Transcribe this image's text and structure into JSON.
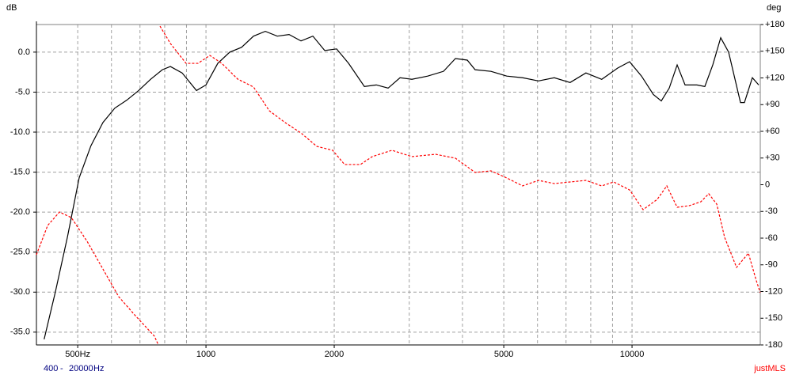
{
  "chart_data": {
    "type": "line",
    "y_label": "dB",
    "y2_label": "deg",
    "x_unit": "Hz",
    "x_range_separator": "-",
    "software": "justMLS",
    "log_x": true,
    "grid": true,
    "xlim": [
      400,
      20000
    ],
    "xticks": [
      {
        "value": 500,
        "label": "500Hz"
      },
      1000,
      2000,
      5000,
      10000
    ],
    "xgrid": [
      500,
      600,
      700,
      800,
      900,
      1000,
      2000,
      3000,
      4000,
      5000,
      6000,
      7000,
      8000,
      9000,
      10000
    ],
    "ylim": [
      -36.6,
      3.45
    ],
    "yticks": [
      {
        "value": 0,
        "label": "0.0"
      },
      {
        "value": -5,
        "label": "-5.0"
      },
      {
        "value": -10,
        "label": "-10.0"
      },
      {
        "value": -15,
        "label": "-15.0"
      },
      {
        "value": -20,
        "label": "-20.0"
      },
      {
        "value": -25,
        "label": "-25.0"
      },
      {
        "value": -30,
        "label": "-30.0"
      },
      {
        "value": -35,
        "label": "-35.0"
      }
    ],
    "y2lim": [
      -180,
      180
    ],
    "y2ticks": [
      {
        "value": 180,
        "label": "+180"
      },
      {
        "value": 150,
        "label": "+150"
      },
      {
        "value": 120,
        "label": "+120"
      },
      {
        "value": 90,
        "label": "+90"
      },
      {
        "value": 60,
        "label": "+60"
      },
      {
        "value": 30,
        "label": "+30"
      },
      0,
      -30,
      -60,
      -90,
      -120,
      -150,
      -180
    ],
    "series": [
      {
        "color": "#000000",
        "line_style": "solid",
        "x": [
          417,
          443,
          473,
          504,
          537,
          573,
          611,
          652,
          695,
          741,
          790,
          825,
          879,
          950,
          1000,
          1066,
          1137,
          1212,
          1293,
          1378,
          1470,
          1567,
          1671,
          1782,
          1900,
          2026,
          2161,
          2354,
          2510,
          2676,
          2854,
          3043,
          3314,
          3610,
          3850,
          4105,
          4283,
          4666,
          5082,
          5536,
          6030,
          6569,
          7155,
          7794,
          8490,
          9248,
          9868,
          10526,
          11222,
          11713,
          12226,
          12761,
          13320,
          14201,
          14822,
          15471,
          16148,
          16854,
          17971,
          18358,
          19162,
          19833
        ],
        "values": [
          -35.9,
          -30.0,
          -23.1,
          -15.7,
          -11.7,
          -8.8,
          -7.0,
          -6.0,
          -4.8,
          -3.4,
          -2.2,
          -1.8,
          -2.6,
          -4.8,
          -4.1,
          -1.4,
          0,
          0.6,
          2.0,
          2.6,
          2.0,
          2.2,
          1.4,
          2.0,
          0.2,
          0.4,
          -1.4,
          -4.3,
          -4.1,
          -4.5,
          -3.2,
          -3.4,
          -3.0,
          -2.4,
          -0.8,
          -1.0,
          -2.2,
          -2.4,
          -3.0,
          -3.2,
          -3.6,
          -3.2,
          -3.8,
          -2.6,
          -3.4,
          -2.0,
          -1.2,
          -3.0,
          -5.3,
          -6.1,
          -4.5,
          -1.6,
          -4.1,
          -4.1,
          -4.3,
          -1.6,
          1.8,
          0,
          -6.3,
          -6.3,
          -3.2,
          -4.1
        ]
      },
      {
        "color": "#ff0000",
        "line_style": "dashed",
        "axis": "y2",
        "x": [
          400,
          425,
          453,
          483,
          526,
          573,
          624,
          680,
          757,
          773,
          777,
          780,
          825,
          898,
          958,
          1021,
          1089,
          1187,
          1293,
          1408,
          1534,
          1671,
          1820,
          1983,
          2115,
          2304,
          2456,
          2733,
          3043,
          3459,
          3850,
          4283,
          4666,
          5082,
          5536,
          6030,
          6569,
          7155,
          7794,
          8490,
          9056,
          9868,
          10617,
          11463,
          12068,
          12761,
          13605,
          14508,
          15139,
          15808,
          16493,
          17592,
          18756,
          19581,
          20000
        ],
        "values": [
          -78.7,
          -45.8,
          -30.7,
          -36.9,
          -63.6,
          -94.7,
          -125.8,
          -146.2,
          -170.2,
          -180,
          null,
          178.2,
          158.7,
          136.4,
          136.4,
          145.3,
          136.4,
          118.7,
          109.8,
          83.1,
          69.8,
          58.2,
          43.1,
          38.7,
          22.7,
          22.7,
          31.6,
          38.7,
          31.6,
          34.2,
          29.8,
          13.8,
          15.6,
          7.6,
          -1.3,
          4.9,
          1.3,
          3.1,
          4.9,
          -1.3,
          3.1,
          -5.8,
          -28.0,
          -16.4,
          -1.3,
          -25.3,
          -23.6,
          -19.1,
          -10.2,
          -21.8,
          -59.1,
          -92.9,
          -76.9,
          -108,
          -121.3
        ]
      }
    ]
  }
}
